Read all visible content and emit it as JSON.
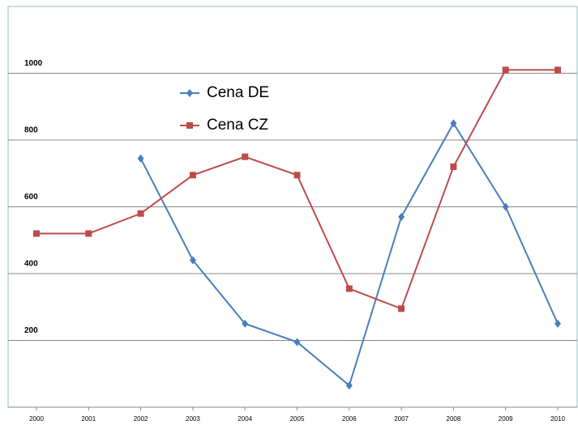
{
  "chart_data": {
    "type": "line",
    "categories": [
      "2000",
      "2001",
      "2002",
      "2003",
      "2004",
      "2005",
      "2006",
      "2007",
      "2008",
      "2009",
      "2010"
    ],
    "series": [
      {
        "name": "Cena DE",
        "color": "#4a7ebb",
        "values": [
          null,
          null,
          745,
          440,
          250,
          195,
          65,
          570,
          850,
          600,
          250
        ]
      },
      {
        "name": "Cena CZ",
        "color": "#be4b48",
        "values": [
          520,
          520,
          580,
          695,
          750,
          695,
          355,
          295,
          720,
          1010,
          1010
        ]
      }
    ],
    "ylim": [
      0,
      1200
    ],
    "yticks": [
      200,
      400,
      600,
      800,
      1000
    ],
    "grid": true
  }
}
